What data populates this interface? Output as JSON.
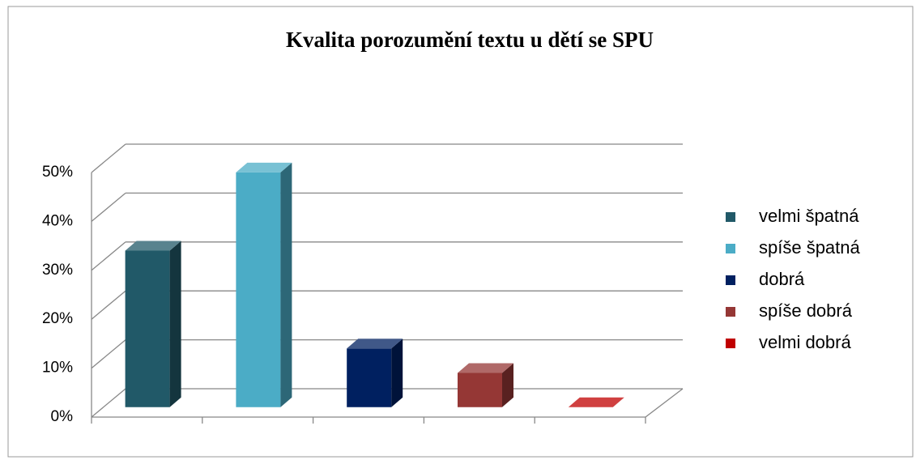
{
  "chart_data": {
    "type": "bar3d",
    "title": "Kvalita porozumění textu u dětí se SPU",
    "series": [
      {
        "name": "velmi špatná",
        "color": "#215968",
        "values": [
          32
        ]
      },
      {
        "name": "spíše špatná",
        "color": "#4bacc6",
        "values": [
          48
        ]
      },
      {
        "name": "dobrá",
        "color": "#002060",
        "values": [
          12
        ]
      },
      {
        "name": "spíše dobrá",
        "color": "#953735",
        "values": [
          7
        ]
      },
      {
        "name": "velmi dobrá",
        "color": "#c00000",
        "values": [
          0
        ]
      }
    ],
    "ylim": [
      0,
      50
    ],
    "yticks": [
      {
        "value": 0,
        "label": "0%"
      },
      {
        "value": 10,
        "label": "10%"
      },
      {
        "value": 20,
        "label": "20%"
      },
      {
        "value": 30,
        "label": "30%"
      },
      {
        "value": 40,
        "label": "40%"
      },
      {
        "value": 50,
        "label": "50%"
      }
    ],
    "grid": true,
    "legend": "right"
  }
}
